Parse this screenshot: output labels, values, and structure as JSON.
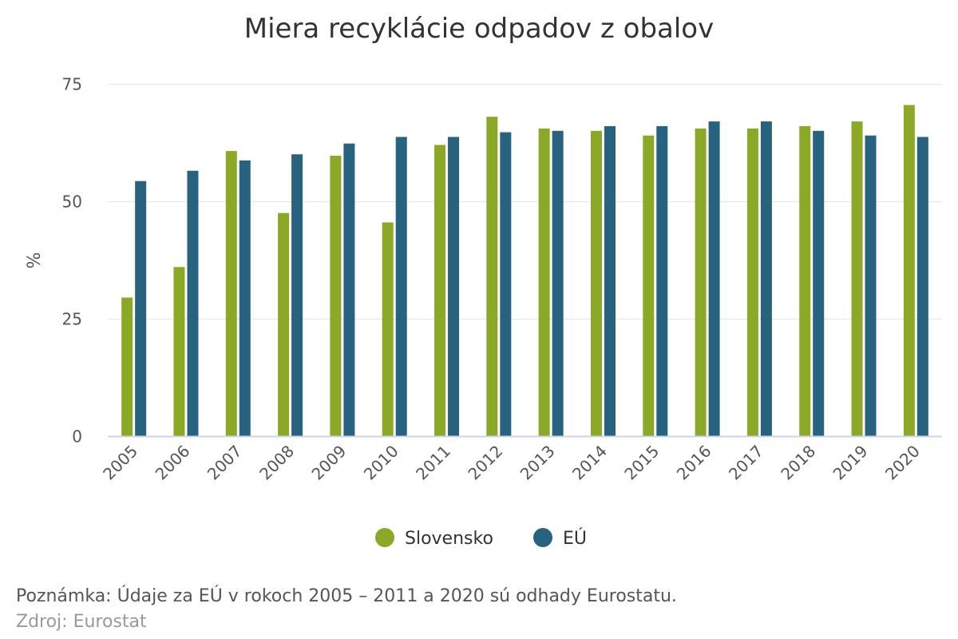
{
  "chart_data": {
    "type": "bar",
    "title": "Miera recyklácie odpadov z obalov",
    "ylabel": "%",
    "xlabel": "",
    "ylim": [
      0,
      75
    ],
    "yticks": [
      0,
      25,
      50,
      75
    ],
    "grid": true,
    "legend_position": "bottom",
    "categories": [
      "2005",
      "2006",
      "2007",
      "2008",
      "2009",
      "2010",
      "2011",
      "2012",
      "2013",
      "2014",
      "2015",
      "2016",
      "2017",
      "2018",
      "2019",
      "2020"
    ],
    "series": [
      {
        "name": "Slovensko",
        "color": "#8ba827",
        "values": [
          29.5,
          36,
          60.7,
          47.5,
          59.7,
          45.5,
          62,
          68,
          65.5,
          65,
          64,
          65.5,
          65.5,
          66,
          67,
          70.5
        ]
      },
      {
        "name": "EÚ",
        "color": "#27627e",
        "values": [
          54.3,
          56.5,
          58.7,
          60,
          62.3,
          63.7,
          63.7,
          64.7,
          65,
          66,
          66,
          67,
          67,
          65,
          64,
          63.7
        ]
      }
    ]
  },
  "footer": {
    "note": "Poznámka: Údaje za EÚ v rokoch 2005 – 2011 a 2020 sú odhady Eurostatu.",
    "source": "Zdroj: Eurostat"
  }
}
